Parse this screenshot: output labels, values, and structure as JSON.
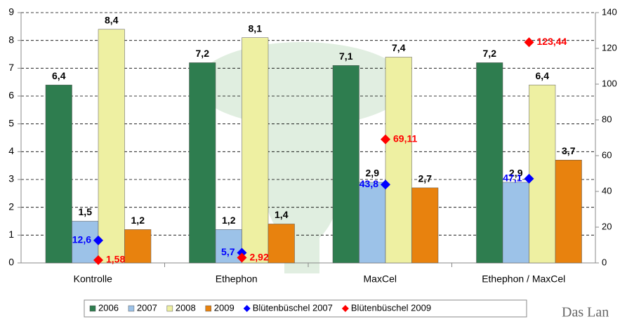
{
  "chart_data": {
    "type": "bar",
    "categories": [
      "Kontrolle",
      "Ethephon",
      "MaxCel",
      "Ethephon / MaxCel"
    ],
    "series": [
      {
        "name": "2006",
        "color": "#2e7d4f",
        "values": [
          6.4,
          7.2,
          7.1,
          7.2
        ],
        "value_labels": [
          "6,4",
          "7,2",
          "7,1",
          "7,2"
        ]
      },
      {
        "name": "2007",
        "color": "#9cc2e8",
        "values": [
          1.5,
          1.2,
          2.9,
          2.9
        ],
        "value_labels": [
          "1,5",
          "1,2",
          "2,9",
          "2,9"
        ]
      },
      {
        "name": "2008",
        "color": "#eef0a2",
        "values": [
          8.4,
          8.1,
          7.4,
          6.4
        ],
        "value_labels": [
          "8,4",
          "8,1",
          "7,4",
          "6,4"
        ]
      },
      {
        "name": "2009",
        "color": "#e8820e",
        "values": [
          1.2,
          1.4,
          2.7,
          3.7
        ],
        "value_labels": [
          "1,2",
          "1,4",
          "2,7",
          "3,7"
        ]
      },
      {
        "name": "Blütenbüschel 2007",
        "type": "scatter",
        "axis": "y2",
        "color": "#0000ff",
        "values": [
          12.6,
          5.7,
          43.8,
          47.1
        ],
        "value_labels": [
          "12,6",
          "5,7",
          "43,8",
          "47,1"
        ]
      },
      {
        "name": "Blütenbüschel 2009",
        "type": "scatter",
        "axis": "y2",
        "color": "#ff0000",
        "values": [
          1.58,
          2.92,
          69.11,
          123.44
        ],
        "value_labels": [
          "1,58",
          "2,92",
          "69,11",
          "123,44"
        ]
      }
    ],
    "ylim": [
      0,
      9
    ],
    "yticks": [
      0,
      1,
      2,
      3,
      4,
      5,
      6,
      7,
      8,
      9
    ],
    "y2lim": [
      0,
      140
    ],
    "y2ticks": [
      0,
      20,
      40,
      60,
      80,
      100,
      120,
      140
    ],
    "grid": true,
    "legend": "bottom",
    "footer_text": "Das Lan"
  }
}
